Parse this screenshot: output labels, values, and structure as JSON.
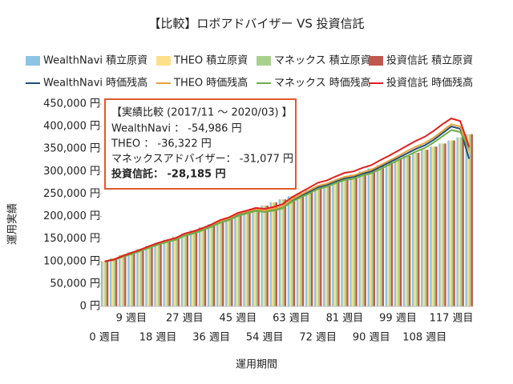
{
  "chart_data": {
    "type": "combo",
    "title": "【比較】ロボアドバイザー VS 投資信託",
    "y_label": "運用実績",
    "x_label": "運用期間",
    "categories": [
      "0 週目",
      null,
      null,
      "9 週目",
      null,
      null,
      "18 週目",
      null,
      null,
      "27 週目",
      null,
      null,
      "36 週目",
      null,
      null,
      "45 週目",
      null,
      null,
      "54 週目",
      null,
      null,
      "63 週目",
      null,
      null,
      "72 週目",
      null,
      null,
      "81 週目",
      null,
      null,
      "90 週目",
      null,
      null,
      "99 週目",
      null,
      null,
      "108 週目",
      null,
      null,
      "117 週目",
      null,
      null
    ],
    "ylim": [
      0,
      450000
    ],
    "yticks": [
      {
        "value": 0,
        "label": "0 円"
      },
      {
        "value": 50000,
        "label": "50,000 円"
      },
      {
        "value": 100000,
        "label": "100,000 円"
      },
      {
        "value": 150000,
        "label": "150,000 円"
      },
      {
        "value": 200000,
        "label": "200,000 円"
      },
      {
        "value": 250000,
        "label": "250,000 円"
      },
      {
        "value": 300000,
        "label": "300,000 円"
      },
      {
        "value": 350000,
        "label": "350,000 円"
      },
      {
        "value": 400000,
        "label": "400,000 円"
      },
      {
        "value": 450000,
        "label": "450,000 円"
      }
    ],
    "series": [
      {
        "name": "WealthNavi 積立原資",
        "type": "bar",
        "color": "#8cc4e4",
        "values": [
          100000,
          106900,
          113800,
          120700,
          127600,
          134500,
          141400,
          148300,
          155200,
          162100,
          169000,
          175900,
          182800,
          189700,
          196600,
          203500,
          210400,
          217300,
          224200,
          231100,
          238000,
          244900,
          251800,
          258700,
          265600,
          272500,
          279400,
          286300,
          293200,
          300100,
          307000,
          313900,
          320800,
          327700,
          334600,
          341500,
          348400,
          355300,
          362200,
          369100,
          376000,
          382900
        ]
      },
      {
        "name": "THEO 積立原資",
        "type": "bar",
        "color": "#ffe08a",
        "values": [
          100000,
          106900,
          113800,
          120700,
          127600,
          134500,
          141400,
          148300,
          155200,
          162100,
          169000,
          175900,
          182800,
          189700,
          196600,
          203500,
          210400,
          217300,
          224200,
          231100,
          238000,
          244900,
          251800,
          258700,
          265600,
          272500,
          279400,
          286300,
          293200,
          300100,
          307000,
          313900,
          320800,
          327700,
          334600,
          341500,
          348400,
          355300,
          362200,
          369100,
          376000,
          382900
        ]
      },
      {
        "name": "マネックス 積立原資",
        "type": "bar",
        "color": "#a9d18e",
        "values": [
          100000,
          106900,
          113800,
          120700,
          127600,
          134500,
          141400,
          148300,
          155200,
          162100,
          169000,
          175900,
          182800,
          189700,
          196600,
          203500,
          210400,
          217300,
          224200,
          231100,
          238000,
          244900,
          251800,
          258700,
          265600,
          272500,
          279400,
          286300,
          293200,
          300100,
          307000,
          313900,
          320800,
          327700,
          334600,
          341500,
          348400,
          355300,
          362200,
          369100,
          376000,
          382900
        ]
      },
      {
        "name": "投資信託 積立原資",
        "type": "bar",
        "color": "#c0584e",
        "values": [
          100000,
          106900,
          113800,
          120700,
          127600,
          134500,
          141400,
          148300,
          155200,
          162100,
          169000,
          175900,
          182800,
          189700,
          196600,
          203500,
          210400,
          217300,
          224200,
          231100,
          238000,
          244900,
          251800,
          258700,
          265600,
          272500,
          279400,
          286300,
          293200,
          300100,
          307000,
          313900,
          320800,
          327700,
          334600,
          341500,
          348400,
          355300,
          362200,
          369100,
          376000,
          382900
        ]
      },
      {
        "name": "WealthNavi 時価残高",
        "type": "line",
        "color": "#1f4e79",
        "values": [
          100000,
          104000,
          112000,
          118000,
          125000,
          133000,
          140000,
          145000,
          150000,
          160000,
          165000,
          172000,
          180000,
          190000,
          195000,
          205000,
          210000,
          215000,
          212000,
          215000,
          220000,
          235000,
          245000,
          255000,
          265000,
          270000,
          278000,
          285000,
          288000,
          295000,
          300000,
          310000,
          320000,
          330000,
          340000,
          350000,
          358000,
          370000,
          385000,
          400000,
          395000,
          328000
        ]
      },
      {
        "name": "THEO 時価残高",
        "type": "line",
        "color": "#e6a23c",
        "values": [
          100000,
          104000,
          113000,
          119000,
          126000,
          133000,
          141000,
          146000,
          151000,
          161000,
          166000,
          173000,
          181000,
          190000,
          196000,
          206000,
          211000,
          216000,
          213000,
          217000,
          222000,
          237000,
          248000,
          258000,
          268000,
          273000,
          281000,
          288000,
          291000,
          298000,
          304000,
          314000,
          324000,
          334000,
          345000,
          355000,
          363000,
          375000,
          390000,
          405000,
          400000,
          346000
        ]
      },
      {
        "name": "マネックス 時価残高",
        "type": "line",
        "color": "#70ad47",
        "values": [
          100000,
          103000,
          110000,
          116000,
          123000,
          130000,
          137000,
          143000,
          148000,
          157000,
          162000,
          169000,
          177000,
          186000,
          192000,
          201000,
          207000,
          212000,
          210000,
          213000,
          218000,
          232000,
          242000,
          251000,
          261000,
          266000,
          274000,
          281000,
          284000,
          291000,
          296000,
          305000,
          315000,
          325000,
          334000,
          344000,
          352000,
          364000,
          378000,
          392000,
          388000,
          352000
        ]
      },
      {
        "name": "投資信託 時価残高",
        "type": "line",
        "color": "#e02020",
        "values": [
          100000,
          104000,
          112000,
          119000,
          126000,
          134000,
          141000,
          147000,
          152000,
          162000,
          167000,
          174000,
          182000,
          192000,
          198000,
          208000,
          213000,
          219000,
          217000,
          221000,
          227000,
          242000,
          253000,
          264000,
          275000,
          280000,
          289000,
          297000,
          300000,
          308000,
          314000,
          325000,
          335000,
          346000,
          357000,
          368000,
          377000,
          390000,
          405000,
          418000,
          412000,
          355000
        ]
      }
    ],
    "annotation": {
      "title": "【実績比較 (2017/11 ～ 2020/03) 】",
      "lines": [
        "WealthNavi ： -54,986 円",
        "THEO ： -36,322 円",
        "マネックスアドバイザー： -31,077 円",
        "投資信託： -28,185 円"
      ]
    }
  }
}
